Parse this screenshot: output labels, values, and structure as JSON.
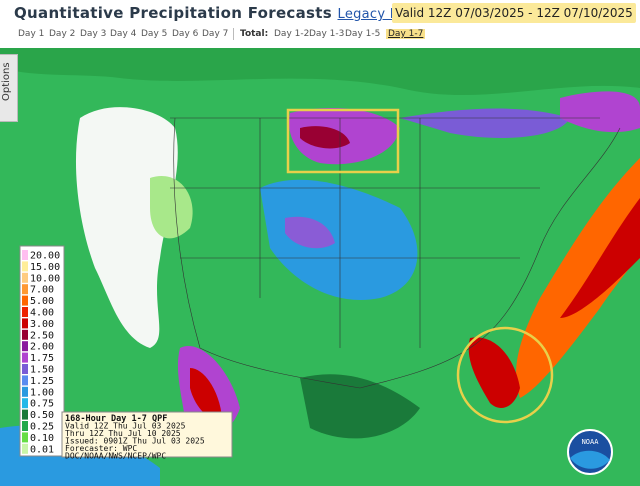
{
  "header": {
    "title": "Quantitative Precipitation Forecasts",
    "legacy_link": "Legacy Page",
    "separator": ":",
    "valid": "Valid 12Z 07/03/2025 - 12Z 07/10/2025"
  },
  "tabs": {
    "days": [
      "Day 1",
      "Day 2",
      "Day 3",
      "Day 4",
      "Day 5",
      "Day 6",
      "Day 7"
    ],
    "total_label": "Total:",
    "totals": [
      "Day 1-2",
      "Day 1-3",
      "Day 1-5",
      "Day 1-7"
    ],
    "active_total": 3
  },
  "options": "Options",
  "legend": [
    {
      "label": "20.00",
      "color": "#ffbef0"
    },
    {
      "label": "15.00",
      "color": "#ffee99"
    },
    {
      "label": "10.00",
      "color": "#ffcc80"
    },
    {
      "label": "7.00",
      "color": "#ff9933"
    },
    {
      "label": "5.00",
      "color": "#ff6600"
    },
    {
      "label": "4.00",
      "color": "#ee2200"
    },
    {
      "label": "3.00",
      "color": "#cc0000"
    },
    {
      "label": "2.50",
      "color": "#990033"
    },
    {
      "label": "2.00",
      "color": "#8a1a9e"
    },
    {
      "label": "1.75",
      "color": "#b044d0"
    },
    {
      "label": "1.50",
      "color": "#7a5cd6"
    },
    {
      "label": "1.25",
      "color": "#5a8cf0"
    },
    {
      "label": "1.00",
      "color": "#2a9ae0"
    },
    {
      "label": "0.75",
      "color": "#22b8e8"
    },
    {
      "label": "0.50",
      "color": "#1a7a3a"
    },
    {
      "label": "0.25",
      "color": "#22a84a"
    },
    {
      "label": "0.10",
      "color": "#66dd44"
    },
    {
      "label": "0.01",
      "color": "#c8f5a8"
    }
  ],
  "info_box": [
    "168-Hour Day 1-7 QPF",
    "Valid 12Z Thu Jul 03 2025",
    "Thru 12Z Thu Jul 10 2025",
    "Issued: 0901Z Thu Jul 03 2025",
    "Forecaster: WPC",
    "DOC/NOAA/NWS/NCEP/WPC"
  ],
  "logo": "NOAA"
}
